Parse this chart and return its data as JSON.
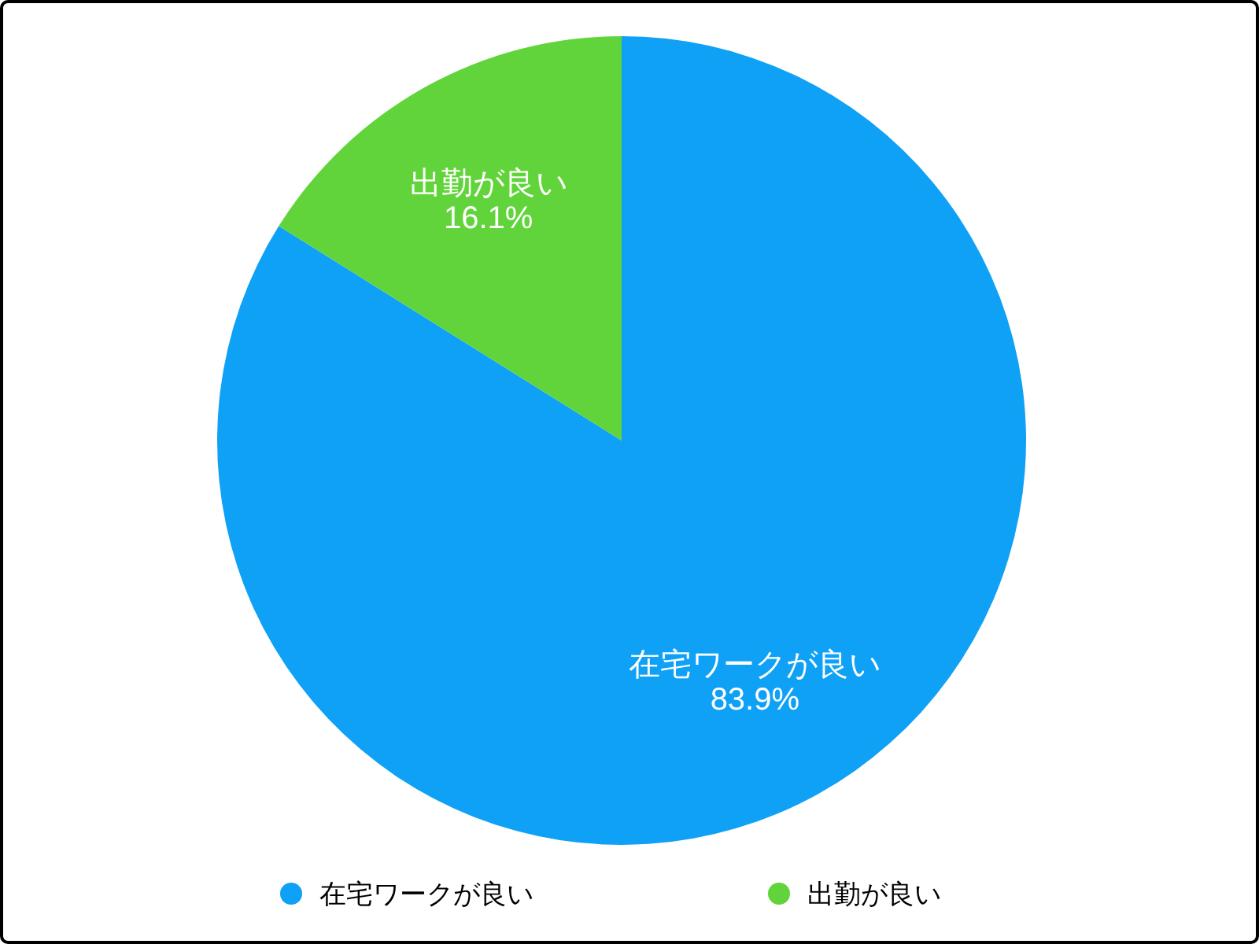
{
  "chart_data": {
    "type": "pie",
    "categories": [
      "在宅ワークが良い",
      "出勤が良い"
    ],
    "values": [
      83.9,
      16.1
    ],
    "colors": [
      "#0fa1f5",
      "#62d43b"
    ],
    "value_labels": [
      "83.9%",
      "16.1%"
    ],
    "legend": "bottom"
  }
}
